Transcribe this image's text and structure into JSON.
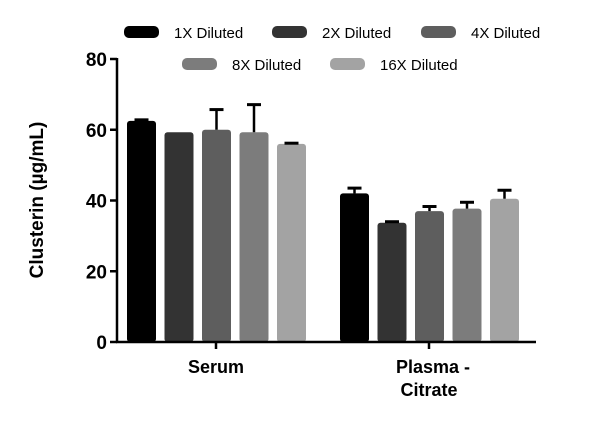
{
  "chart_data": {
    "type": "bar",
    "title": "",
    "xlabel": "",
    "ylabel": "Clusterin (µg/mL)",
    "ylim": [
      0,
      80
    ],
    "yticks": [
      0,
      20,
      40,
      60,
      80
    ],
    "categories": [
      "Serum",
      "Plasma - Citrate"
    ],
    "category_lines": [
      [
        "Serum"
      ],
      [
        "Plasma -",
        "Citrate"
      ]
    ],
    "grid": false,
    "legend_position": "top",
    "series": [
      {
        "name": "1X Diluted",
        "color": "#000000",
        "values": [
          62.5,
          42.0
        ],
        "errors": [
          0.3,
          1.5
        ]
      },
      {
        "name": "2X Diluted",
        "color": "#333333",
        "values": [
          59.3,
          33.7
        ],
        "errors": [
          0.0,
          0.3
        ]
      },
      {
        "name": "4X Diluted",
        "color": "#5e5e5e",
        "values": [
          60.0,
          37.0
        ],
        "errors": [
          5.7,
          1.3
        ]
      },
      {
        "name": "8X Diluted",
        "color": "#7c7c7c",
        "values": [
          59.3,
          37.7
        ],
        "errors": [
          7.8,
          1.8
        ]
      },
      {
        "name": "16X Diluted",
        "color": "#a3a3a3",
        "values": [
          56.0,
          40.5
        ],
        "errors": [
          0.2,
          2.4
        ]
      }
    ]
  }
}
